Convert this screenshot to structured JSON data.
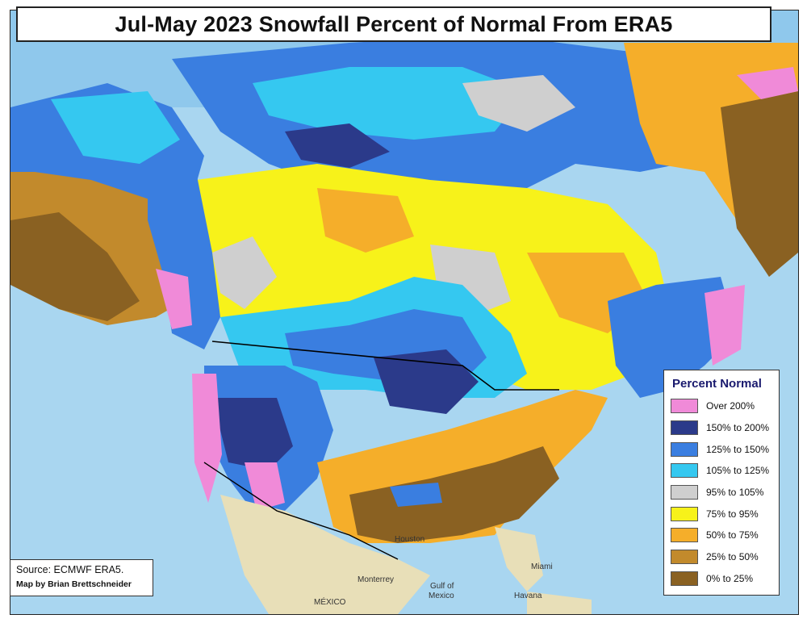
{
  "map": {
    "title": "Jul-May 2023 Snowfall Percent of Normal From ERA5",
    "source": "Source: ECMWF ERA5.",
    "credit": "Map by Brian Brettschneider",
    "legend": {
      "title": "Percent Normal",
      "items": [
        {
          "label": "Over 200%",
          "color": "#f08ad8"
        },
        {
          "label": "150% to 200%",
          "color": "#2b3a8a"
        },
        {
          "label": "125% to 150%",
          "color": "#3a7ee0"
        },
        {
          "label": "105% to 125%",
          "color": "#35c8f0"
        },
        {
          "label": "95% to 105%",
          "color": "#cfcfcf"
        },
        {
          "label": "75% to 95%",
          "color": "#f7f21a"
        },
        {
          "label": "50% to 75%",
          "color": "#f5ae2a"
        },
        {
          "label": "25% to 50%",
          "color": "#c28a2c"
        },
        {
          "label": "0% to 25%",
          "color": "#8a6122"
        }
      ]
    },
    "places": {
      "houston": "Houston",
      "monterrey": "Monterrey",
      "mexico": "MÉXICO",
      "gulf1": "Gulf of",
      "gulf2": "Mexico",
      "miami": "Miami",
      "havana": "Havana"
    }
  }
}
